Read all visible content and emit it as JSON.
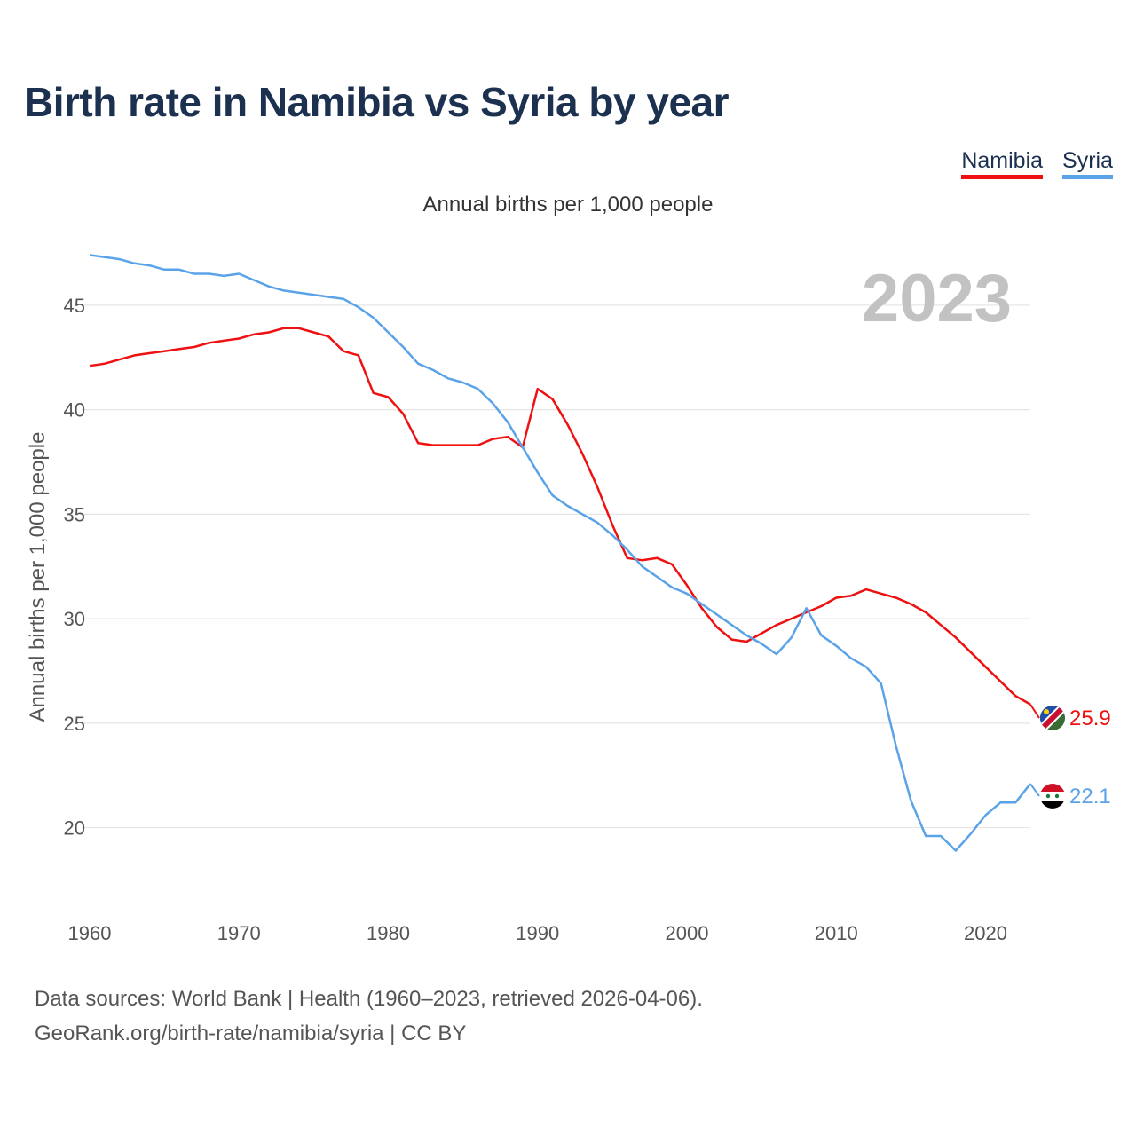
{
  "title": "Birth rate in Namibia vs Syria by year",
  "subtitle": "Annual births per 1,000 people",
  "legend": [
    {
      "label": "Namibia",
      "color": "#ee1111"
    },
    {
      "label": "Syria",
      "color": "#5ba3e8"
    }
  ],
  "footer": {
    "line1": "Data sources: World Bank | Health (1960–2023, retrieved 2026-04-06).",
    "line2": "GeoRank.org/birth-rate/namibia/syria | CC BY"
  },
  "chart_data": {
    "type": "line",
    "title": "Birth rate in Namibia vs Syria by year",
    "ylabel": "Annual births per 1,000 people",
    "xlabel": "",
    "year_label": "2023",
    "xlim": [
      1960,
      2023
    ],
    "ylim": [
      16.5,
      47.5
    ],
    "x_ticks": [
      1960,
      1970,
      1980,
      1990,
      2000,
      2010,
      2020
    ],
    "y_ticks": [
      20,
      25,
      30,
      35,
      40,
      45
    ],
    "grid": true,
    "x": [
      1960,
      1961,
      1962,
      1963,
      1964,
      1965,
      1966,
      1967,
      1968,
      1969,
      1970,
      1971,
      1972,
      1973,
      1974,
      1975,
      1976,
      1977,
      1978,
      1979,
      1980,
      1981,
      1982,
      1983,
      1984,
      1985,
      1986,
      1987,
      1988,
      1989,
      1990,
      1991,
      1992,
      1993,
      1994,
      1995,
      1996,
      1997,
      1998,
      1999,
      2000,
      2001,
      2002,
      2003,
      2004,
      2005,
      2006,
      2007,
      2008,
      2009,
      2010,
      2011,
      2012,
      2013,
      2014,
      2015,
      2016,
      2017,
      2018,
      2019,
      2020,
      2021,
      2022,
      2023
    ],
    "series": [
      {
        "name": "Namibia",
        "color": "#ee1111",
        "end_label": "25.9",
        "flag": "namibia-flag-icon",
        "values": [
          42.1,
          42.2,
          42.4,
          42.6,
          42.7,
          42.8,
          42.9,
          43.0,
          43.2,
          43.3,
          43.4,
          43.6,
          43.7,
          43.9,
          43.9,
          43.7,
          43.5,
          42.8,
          42.6,
          40.8,
          40.6,
          39.8,
          38.4,
          38.3,
          38.3,
          38.3,
          38.3,
          38.6,
          38.7,
          38.2,
          41.0,
          40.5,
          39.3,
          37.9,
          36.3,
          34.5,
          32.9,
          32.8,
          32.9,
          32.6,
          31.6,
          30.5,
          29.6,
          29.0,
          28.9,
          29.3,
          29.7,
          30.0,
          30.3,
          30.6,
          31.0,
          31.1,
          31.4,
          31.2,
          31.0,
          30.7,
          30.3,
          29.7,
          29.1,
          28.4,
          27.7,
          27.0,
          26.3,
          25.9
        ]
      },
      {
        "name": "Syria",
        "color": "#5ba3e8",
        "end_label": "22.1",
        "flag": "syria-flag-icon",
        "values": [
          47.4,
          47.3,
          47.2,
          47.0,
          46.9,
          46.7,
          46.7,
          46.5,
          46.5,
          46.4,
          46.5,
          46.2,
          45.9,
          45.7,
          45.6,
          45.5,
          45.4,
          45.3,
          44.9,
          44.4,
          43.7,
          43.0,
          42.2,
          41.9,
          41.5,
          41.3,
          41.0,
          40.3,
          39.4,
          38.2,
          37.0,
          35.9,
          35.4,
          35.0,
          34.6,
          34.0,
          33.3,
          32.5,
          32.0,
          31.5,
          31.2,
          30.7,
          30.2,
          29.7,
          29.2,
          28.8,
          28.3,
          29.1,
          30.5,
          29.2,
          28.7,
          28.1,
          27.7,
          26.9,
          23.9,
          21.3,
          19.6,
          19.6,
          18.9,
          19.7,
          20.6,
          21.2,
          21.2,
          22.1
        ]
      }
    ]
  }
}
